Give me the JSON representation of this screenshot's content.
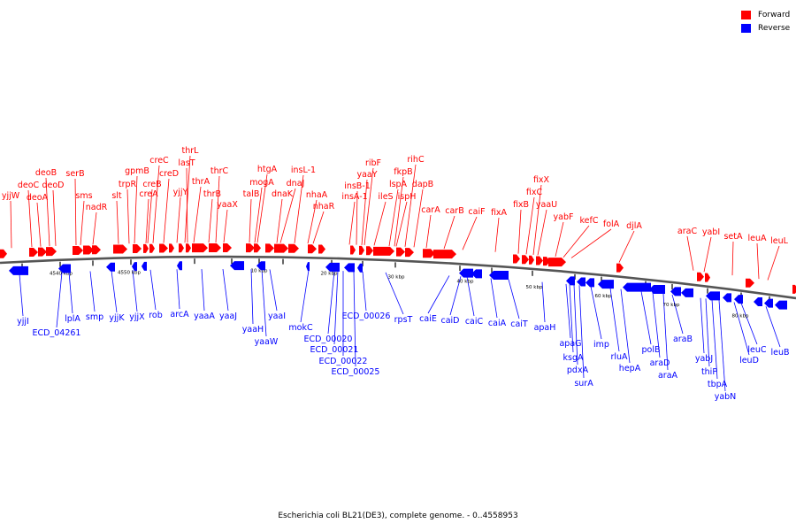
{
  "legend": {
    "forward_label": "Forward",
    "reverse_label": "Reverse",
    "forward_color": "#ff0000",
    "reverse_color": "#0000ff"
  },
  "caption": "Escherichia coli BL21(DE3), complete genome. - 0..4558953",
  "colors": {
    "backbone": "#555555",
    "forward": "#ff0000",
    "reverse": "#0000ff",
    "tick": "#000000"
  },
  "scale_labels": [
    "4540 kbp",
    "4550 kbp",
    "10 kbp",
    "20 kbp",
    "30 kbp",
    "40 kbp",
    "50 kbp",
    "60 kbp",
    "70 kbp",
    "80 kbp"
  ],
  "forward_genes": [
    "yjjW",
    "deoC",
    "deoA",
    "deoB",
    "deoD",
    "serB",
    "sms",
    "nadR",
    "slt",
    "trpR",
    "gpmB",
    "creB",
    "creA",
    "creC",
    "creD",
    "yjjY",
    "thrL",
    "lasT",
    "thrA",
    "thrB",
    "thrC",
    "yaaX",
    "htgA",
    "mogA",
    "talB",
    "dnaJ",
    "dnaK",
    "insL-1",
    "nhaA",
    "nhaR",
    "insB-1",
    "insA-1",
    "ribF",
    "yaaY",
    "ileS",
    "fkpB",
    "lspA",
    "ispH",
    "rihC",
    "dapB",
    "carA",
    "carB",
    "caiF",
    "fixA",
    "fixB",
    "fixC",
    "fixX",
    "yaaU",
    "yabF",
    "kefC",
    "folA",
    "djlA",
    "araC",
    "yabI",
    "setA",
    "leuA",
    "leuL"
  ],
  "reverse_genes": [
    "yjjI",
    "ECD_04261",
    "lplA",
    "smp",
    "yjjK",
    "yjjX",
    "rob",
    "arcA",
    "yaaA",
    "yaaJ",
    "yaaH",
    "yaaW",
    "yaaI",
    "mokC",
    "ECD_00020",
    "ECD_00021",
    "ECD_00022",
    "ECD_00025",
    "ECD_00026",
    "rpsT",
    "caiE",
    "caiD",
    "caiC",
    "caiA",
    "caiT",
    "apaH",
    "apaG",
    "ksgA",
    "pdxA",
    "surA",
    "imp",
    "rluA",
    "hepA",
    "polB",
    "araD",
    "araA",
    "araB",
    "yabJ",
    "thiP",
    "tbpA",
    "yabN",
    "leuC",
    "leuD",
    "leuB"
  ]
}
